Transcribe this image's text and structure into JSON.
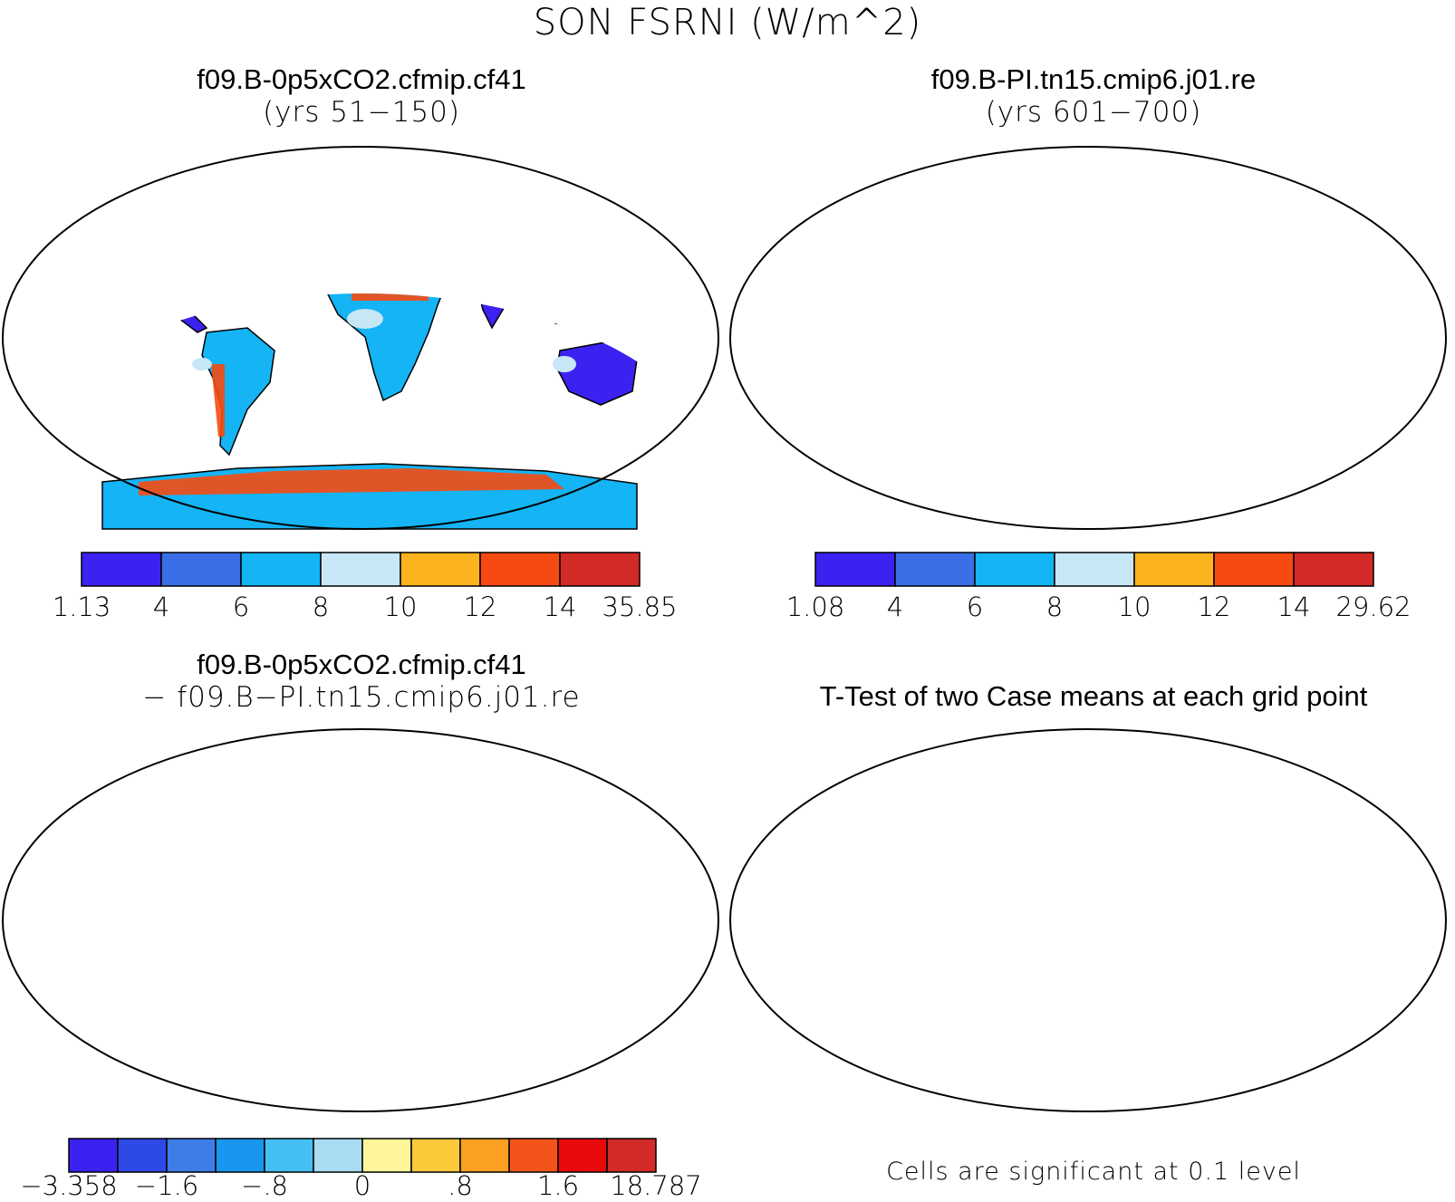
{
  "main_title": "SON FSRNI (W/m^2)",
  "colors": {
    "five_levels": [
      "#3b22f0",
      "#3a6ee6",
      "#14b4f5",
      "#c7e6f6",
      "#fbb41e",
      "#f64a12",
      "#d22a27"
    ],
    "diff_levels": [
      "#3b22f0",
      "#2e4ae6",
      "#3d7de8",
      "#1996ee",
      "#45bff3",
      "#a9dbf2",
      "#fff59a",
      "#fcc93a",
      "#fba022",
      "#f4541a",
      "#e80a0a",
      "#d22a27"
    ],
    "ttest": "#ff0000"
  },
  "panels": [
    {
      "title_line1": "f09.B-0p5xCO2.cfmip.cf41",
      "title_line2": "(yrs 51−150)",
      "colorbar_labels": [
        "1.13",
        "4",
        "6",
        "8",
        "10",
        "12",
        "14",
        "35.85"
      ]
    },
    {
      "title_line1": "f09.B-PI.tn15.cmip6.j01.re",
      "title_line2": "(yrs 601−700)",
      "colorbar_labels": [
        "1.08",
        "4",
        "6",
        "8",
        "10",
        "12",
        "14",
        "29.62"
      ]
    },
    {
      "title_line1": "f09.B-0p5xCO2.cfmip.cf41",
      "title_line2": "− f09.B−PI.tn15.cmip6.j01.re",
      "colorbar_labels": [
        "−3.358",
        "−1.6",
        "−.8",
        "0",
        ".8",
        "1.6",
        "18.787"
      ]
    },
    {
      "title_line1": "T-Test of two Case means at each grid point",
      "note": "Cells are significant at 0.1 level"
    }
  ]
}
